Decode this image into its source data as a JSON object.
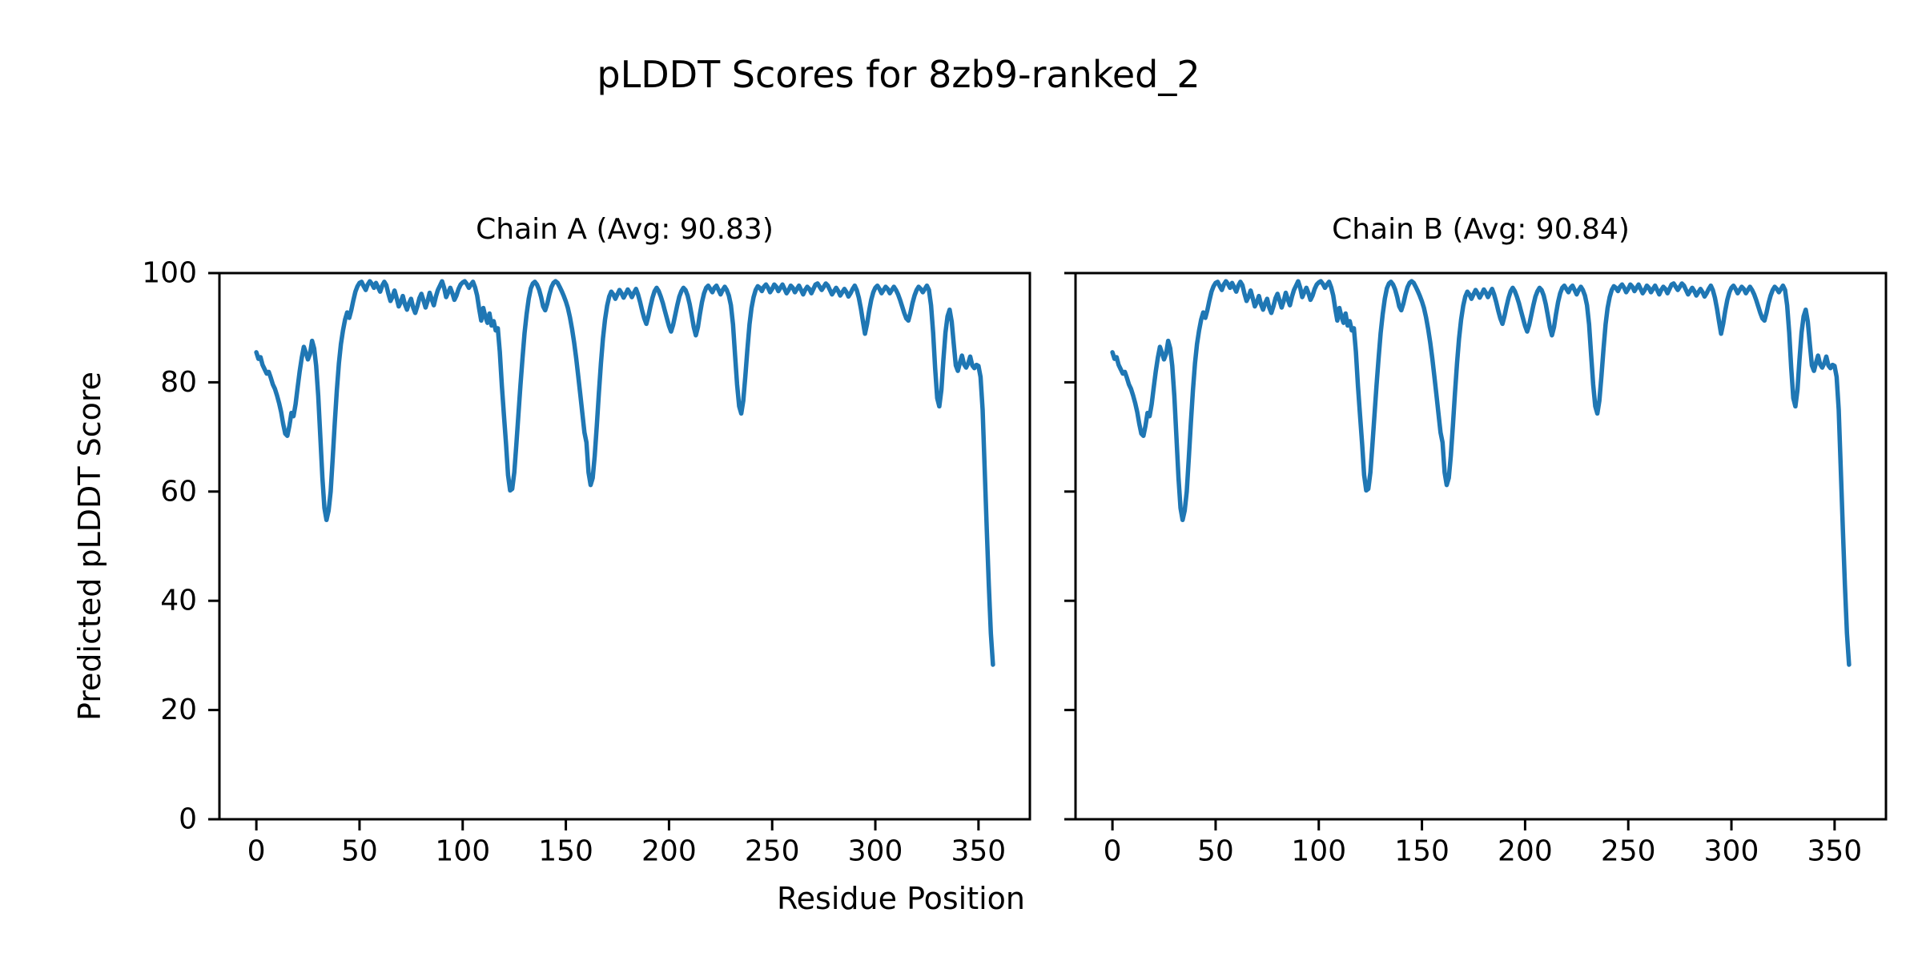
{
  "figure": {
    "title": "pLDDT Scores for 8zb9-ranked_2",
    "xlabel": "Residue Position",
    "ylabel": "Predicted pLDDT Score",
    "background": "#ffffff",
    "axis_color": "#000000",
    "line_color": "#1f77b4"
  },
  "chart_data": [
    {
      "type": "line",
      "title": "Chain A (Avg: 90.83)",
      "avg": 90.83,
      "xlim": [
        -17.9,
        374.9
      ],
      "ylim": [
        0,
        100
      ],
      "xticks": [
        0,
        50,
        100,
        150,
        200,
        250,
        300,
        350
      ],
      "yticks": [
        0,
        20,
        40,
        60,
        80,
        100
      ],
      "ytick_labels_visible": true,
      "grid": false,
      "legend": "none",
      "series": [
        {
          "name": "pLDDT",
          "color": "#1f77b4",
          "x_start": 0,
          "x_step": 1,
          "values": [
            85.5,
            84.3,
            84.6,
            83.2,
            82.4,
            81.6,
            81.9,
            80.8,
            79.6,
            78.8,
            77.6,
            76.2,
            74.6,
            72.4,
            70.6,
            70.2,
            72.0,
            74.4,
            73.8,
            76.0,
            79.0,
            82.0,
            84.5,
            86.5,
            85.4,
            84.2,
            85.2,
            87.6,
            86.2,
            83.0,
            77.5,
            70.0,
            62.5,
            57.0,
            54.8,
            56.5,
            60.0,
            66.0,
            72.5,
            78.5,
            83.5,
            87.0,
            89.5,
            91.5,
            92.8,
            91.8,
            93.2,
            95.0,
            96.6,
            97.6,
            98.2,
            98.4,
            97.6,
            96.9,
            97.9,
            98.5,
            98.0,
            97.3,
            98.2,
            97.4,
            96.6,
            97.7,
            98.4,
            97.8,
            96.2,
            94.9,
            95.7,
            96.8,
            95.4,
            93.9,
            94.7,
            95.8,
            94.3,
            93.3,
            94.5,
            95.3,
            93.7,
            92.7,
            93.9,
            95.4,
            96.2,
            95.0,
            93.7,
            94.9,
            96.4,
            95.2,
            94.1,
            95.7,
            96.9,
            97.7,
            98.5,
            97.3,
            95.6,
            96.5,
            97.3,
            96.3,
            95.1,
            95.9,
            97.1,
            97.9,
            98.3,
            98.5,
            98.0,
            97.3,
            97.9,
            98.4,
            97.4,
            95.9,
            93.4,
            91.3,
            93.6,
            92.0,
            90.9,
            92.6,
            90.4,
            91.2,
            89.5,
            89.9,
            85.6,
            79.3,
            73.9,
            68.7,
            63.0,
            60.2,
            60.5,
            63.5,
            68.5,
            74.0,
            79.5,
            84.5,
            89.0,
            92.5,
            95.3,
            97.2,
            98.1,
            98.4,
            97.9,
            97.0,
            95.6,
            93.9,
            93.2,
            94.4,
            96.1,
            97.4,
            98.2,
            98.5,
            98.2,
            97.5,
            96.7,
            95.8,
            94.8,
            93.6,
            91.9,
            89.8,
            87.3,
            84.4,
            81.2,
            77.8,
            74.3,
            70.8,
            69.0,
            63.5,
            61.2,
            62.5,
            66.5,
            72.0,
            78.0,
            83.5,
            88.0,
            91.5,
            94.0,
            95.7,
            96.6,
            96.1,
            95.3,
            96.1,
            96.9,
            96.3,
            95.5,
            96.2,
            97.0,
            96.4,
            95.6,
            96.4,
            97.1,
            96.1,
            94.7,
            93.1,
            91.7,
            90.7,
            92.1,
            93.9,
            95.5,
            96.7,
            97.3,
            96.7,
            95.7,
            94.5,
            93.1,
            91.7,
            90.3,
            89.3,
            90.5,
            92.3,
            94.1,
            95.7,
            96.7,
            97.3,
            96.9,
            95.9,
            94.3,
            92.3,
            90.1,
            88.6,
            90.1,
            92.5,
            94.7,
            96.3,
            97.3,
            97.7,
            97.1,
            96.5,
            97.3,
            97.7,
            96.9,
            96.1,
            96.9,
            97.5,
            96.9,
            95.9,
            94.1,
            90.6,
            85.1,
            79.6,
            75.6,
            74.3,
            76.6,
            81.1,
            86.1,
            90.6,
            93.6,
            95.6,
            96.9,
            97.6,
            97.3,
            96.7,
            97.5,
            97.9,
            97.3,
            96.5,
            97.1,
            97.9,
            97.5,
            96.7,
            97.3,
            97.9,
            97.1,
            96.3,
            96.9,
            97.7,
            97.3,
            96.5,
            97.1,
            97.7,
            96.9,
            96.1,
            96.9,
            97.5,
            97.1,
            96.3,
            97.1,
            97.9,
            98.1,
            97.5,
            96.9,
            97.5,
            98.1,
            97.7,
            96.9,
            96.1,
            96.7,
            97.3,
            96.7,
            95.9,
            96.5,
            97.1,
            96.5,
            95.7,
            96.3,
            97.1,
            97.7,
            96.9,
            95.5,
            93.5,
            91.1,
            88.9,
            90.7,
            93.1,
            95.1,
            96.5,
            97.3,
            97.7,
            97.1,
            96.3,
            96.9,
            97.5,
            97.1,
            96.3,
            96.9,
            97.5,
            96.9,
            96.1,
            95.1,
            93.9,
            92.7,
            91.7,
            91.3,
            92.7,
            94.5,
            95.9,
            96.9,
            97.5,
            97.1,
            96.5,
            97.1,
            97.7,
            96.9,
            94.1,
            89.1,
            82.6,
            77.1,
            75.6,
            78.6,
            84.1,
            89.1,
            92.1,
            93.3,
            91.1,
            87.1,
            83.1,
            82.1,
            83.6,
            84.9,
            83.3,
            82.7,
            83.5,
            84.7,
            83.1,
            82.6,
            83.2,
            83.0,
            81.0,
            75.0,
            64.0,
            53.0,
            43.0,
            34.0,
            28.3
          ]
        }
      ]
    },
    {
      "type": "line",
      "title": "Chain B (Avg: 90.84)",
      "avg": 90.84,
      "xlim": [
        -17.9,
        374.9
      ],
      "ylim": [
        0,
        100
      ],
      "xticks": [
        0,
        50,
        100,
        150,
        200,
        250,
        300,
        350
      ],
      "yticks": [
        0,
        20,
        40,
        60,
        80,
        100
      ],
      "ytick_labels_visible": false,
      "grid": false,
      "legend": "none",
      "series": [
        {
          "name": "pLDDT",
          "color": "#1f77b4",
          "x_start": 0,
          "x_step": 1,
          "values": [
            85.5,
            84.3,
            84.6,
            83.2,
            82.4,
            81.6,
            81.9,
            80.8,
            79.6,
            78.8,
            77.6,
            76.2,
            74.6,
            72.4,
            70.6,
            70.2,
            72.0,
            74.4,
            73.8,
            76.0,
            79.0,
            82.0,
            84.5,
            86.5,
            85.4,
            84.2,
            85.2,
            87.6,
            86.2,
            83.0,
            77.5,
            70.0,
            62.5,
            57.0,
            54.8,
            56.5,
            60.0,
            66.0,
            72.5,
            78.5,
            83.5,
            87.0,
            89.5,
            91.5,
            92.8,
            91.8,
            93.2,
            95.0,
            96.6,
            97.6,
            98.2,
            98.4,
            97.6,
            96.9,
            97.9,
            98.5,
            98.0,
            97.3,
            98.2,
            97.4,
            96.6,
            97.7,
            98.4,
            97.8,
            96.2,
            94.9,
            95.7,
            96.8,
            95.4,
            93.9,
            94.7,
            95.8,
            94.3,
            93.3,
            94.5,
            95.3,
            93.7,
            92.7,
            93.9,
            95.4,
            96.2,
            95.0,
            93.7,
            94.9,
            96.4,
            95.2,
            94.1,
            95.7,
            96.9,
            97.7,
            98.5,
            97.3,
            95.6,
            96.5,
            97.3,
            96.3,
            95.1,
            95.9,
            97.1,
            97.9,
            98.3,
            98.5,
            98.0,
            97.3,
            97.9,
            98.4,
            97.4,
            95.9,
            93.4,
            91.3,
            93.6,
            92.0,
            90.9,
            92.6,
            90.4,
            91.2,
            89.5,
            89.9,
            85.6,
            79.3,
            73.9,
            68.7,
            63.0,
            60.2,
            60.5,
            63.5,
            68.5,
            74.0,
            79.5,
            84.5,
            89.0,
            92.5,
            95.3,
            97.2,
            98.1,
            98.4,
            97.9,
            97.0,
            95.6,
            93.9,
            93.2,
            94.4,
            96.1,
            97.4,
            98.2,
            98.5,
            98.2,
            97.5,
            96.7,
            95.8,
            94.8,
            93.6,
            91.9,
            89.8,
            87.3,
            84.4,
            81.2,
            77.8,
            74.3,
            70.8,
            69.0,
            63.5,
            61.2,
            62.5,
            66.5,
            72.0,
            78.0,
            83.5,
            88.0,
            91.5,
            94.0,
            95.7,
            96.6,
            96.1,
            95.3,
            96.1,
            96.9,
            96.3,
            95.5,
            96.2,
            97.0,
            96.4,
            95.6,
            96.4,
            97.1,
            96.1,
            94.7,
            93.1,
            91.7,
            90.7,
            92.1,
            93.9,
            95.5,
            96.7,
            97.3,
            96.7,
            95.7,
            94.5,
            93.1,
            91.7,
            90.3,
            89.3,
            90.5,
            92.3,
            94.1,
            95.7,
            96.7,
            97.3,
            96.9,
            95.9,
            94.3,
            92.3,
            90.1,
            88.6,
            90.1,
            92.5,
            94.7,
            96.3,
            97.3,
            97.7,
            97.1,
            96.5,
            97.3,
            97.7,
            96.9,
            96.1,
            96.9,
            97.5,
            96.9,
            95.9,
            94.1,
            90.6,
            85.1,
            79.6,
            75.6,
            74.3,
            76.6,
            81.1,
            86.1,
            90.6,
            93.6,
            95.6,
            96.9,
            97.6,
            97.3,
            96.7,
            97.5,
            97.9,
            97.3,
            96.5,
            97.1,
            97.9,
            97.5,
            96.7,
            97.3,
            97.9,
            97.1,
            96.3,
            96.9,
            97.7,
            97.3,
            96.5,
            97.1,
            97.7,
            96.9,
            96.1,
            96.9,
            97.5,
            97.1,
            96.3,
            97.1,
            97.9,
            98.1,
            97.5,
            96.9,
            97.5,
            98.1,
            97.7,
            96.9,
            96.1,
            96.7,
            97.3,
            96.7,
            95.9,
            96.5,
            97.1,
            96.5,
            95.7,
            96.3,
            97.1,
            97.7,
            96.9,
            95.5,
            93.5,
            91.1,
            88.9,
            90.7,
            93.1,
            95.1,
            96.5,
            97.3,
            97.7,
            97.1,
            96.3,
            96.9,
            97.5,
            97.1,
            96.3,
            96.9,
            97.5,
            96.9,
            96.1,
            95.1,
            93.9,
            92.7,
            91.7,
            91.3,
            92.7,
            94.5,
            95.9,
            96.9,
            97.5,
            97.1,
            96.5,
            97.1,
            97.7,
            96.9,
            94.1,
            89.1,
            82.6,
            77.1,
            75.6,
            78.6,
            84.1,
            89.1,
            92.1,
            93.3,
            91.1,
            87.1,
            83.1,
            82.1,
            83.6,
            84.9,
            83.3,
            82.7,
            83.5,
            84.7,
            83.1,
            82.6,
            83.2,
            83.0,
            81.0,
            75.0,
            64.0,
            53.0,
            43.0,
            34.0,
            28.3
          ]
        }
      ]
    }
  ]
}
